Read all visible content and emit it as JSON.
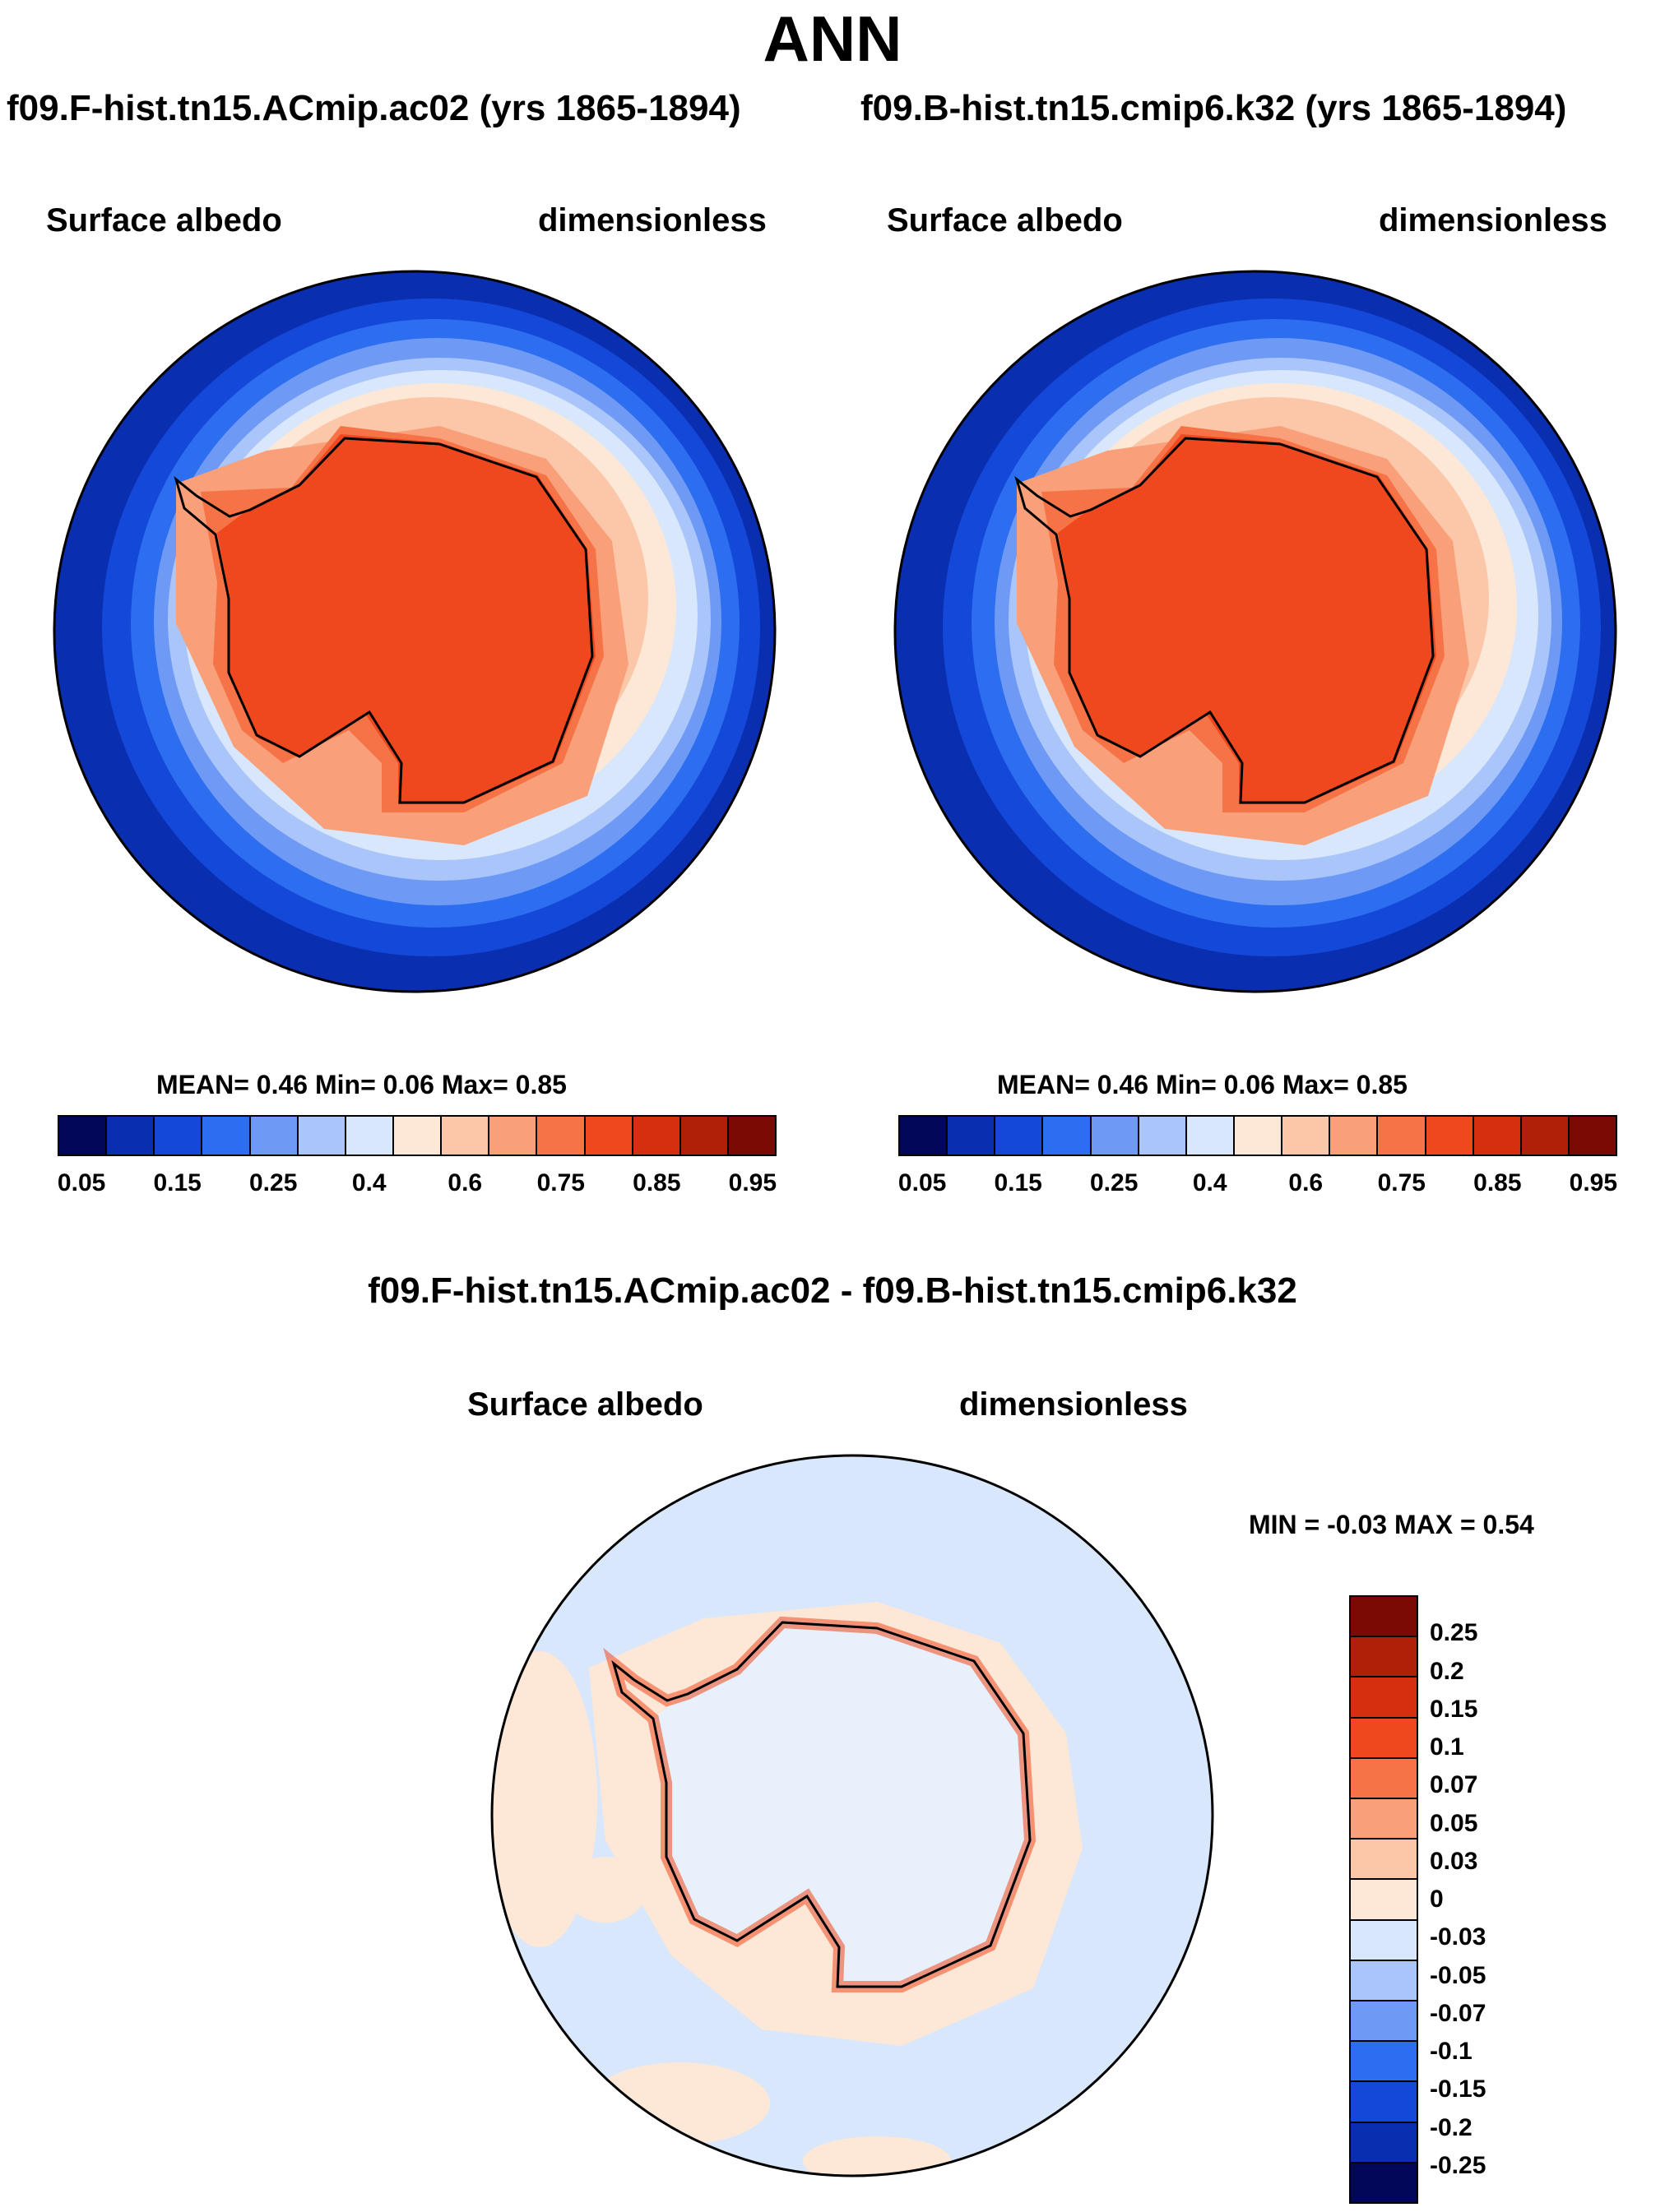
{
  "title": "ANN",
  "left_panel": {
    "case_title": "f09.F-hist.tn15.ACmip.ac02 (yrs 1865-1894)",
    "variable": "Surface albedo",
    "units": "dimensionless",
    "stats": "MEAN=   0.46  Min=   0.06  Max=   0.85"
  },
  "right_panel": {
    "case_title": "f09.B-hist.tn15.cmip6.k32 (yrs 1865-1894)",
    "variable": "Surface albedo",
    "units": "dimensionless",
    "stats": "MEAN=   0.46  Min=   0.06  Max=   0.85"
  },
  "diff_panel": {
    "case_title": "f09.F-hist.tn15.ACmip.ac02 - f09.B-hist.tn15.cmip6.k32",
    "variable": "Surface albedo",
    "units": "dimensionless",
    "minmax": "MIN =  -0.03 MAX =   0.54"
  },
  "abs_colorbar": {
    "colors": [
      "#02075a",
      "#0a2eb0",
      "#1448d8",
      "#2d6ef0",
      "#6e9af5",
      "#a9c5fa",
      "#d8e7fb",
      "#fde8d8",
      "#fcc7a8",
      "#f9a07a",
      "#f57347",
      "#f0481e",
      "#d62f10",
      "#b01f08",
      "#7a0a03"
    ],
    "labels": [
      "0.05",
      "0.15",
      "0.25",
      "0.4",
      "0.6",
      "0.75",
      "0.85",
      "0.95"
    ]
  },
  "diff_colorbar": {
    "colors": [
      "#7a0a03",
      "#b01f08",
      "#d62f10",
      "#f0481e",
      "#f57347",
      "#f9a07a",
      "#fcc7a8",
      "#fde8d8",
      "#d8e7fb",
      "#a9c5fa",
      "#6e9af5",
      "#2d6ef0",
      "#1448d8",
      "#0a2eb0",
      "#02075a"
    ],
    "labels": [
      "0.25",
      "0.2",
      "0.15",
      "0.1",
      "0.07",
      "0.05",
      "0.03",
      "0",
      "-0.03",
      "-0.05",
      "-0.07",
      "-0.1",
      "-0.15",
      "-0.2",
      "-0.25"
    ]
  }
}
